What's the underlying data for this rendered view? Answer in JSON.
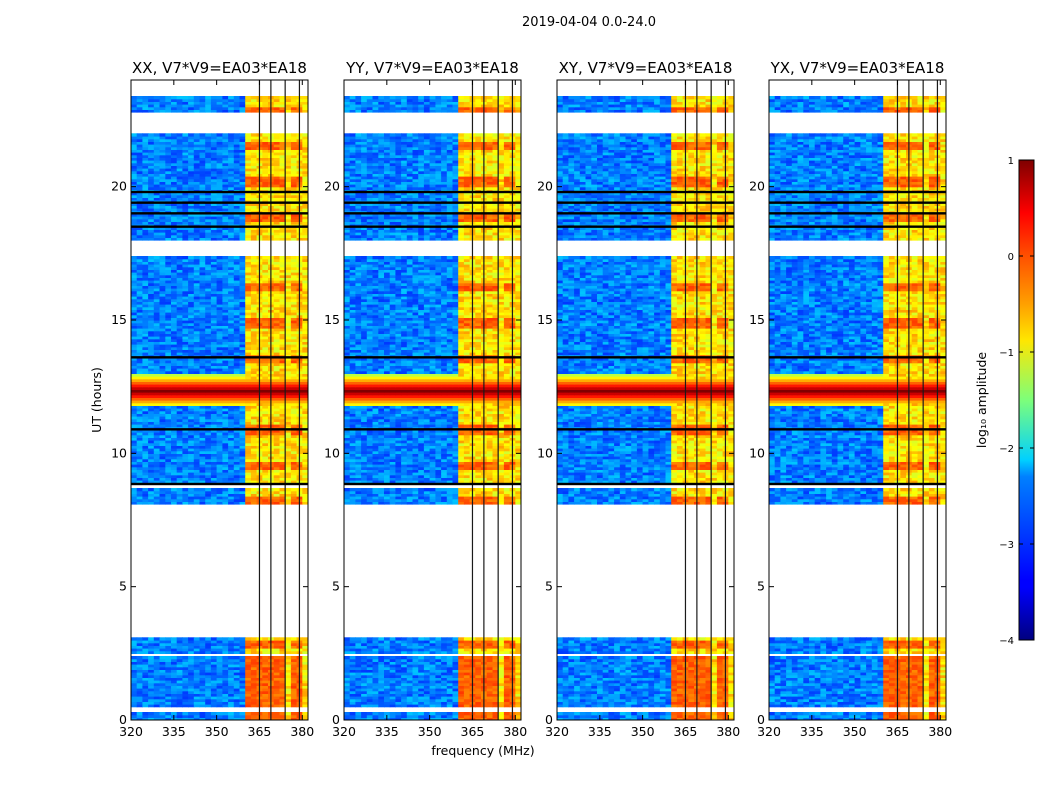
{
  "chart_data": {
    "type": "heatmap",
    "suptitle": "2019-04-04 0.0-24.0",
    "xlabel": "frequency (MHz)",
    "ylabel": "UT (hours)",
    "xlim": [
      320,
      382
    ],
    "ylim": [
      0,
      24
    ],
    "xticks": [
      320,
      335,
      350,
      365,
      380
    ],
    "yticks": [
      0,
      5,
      10,
      15,
      20
    ],
    "panels": [
      {
        "title": "XX, V7*V9=EA03*EA18",
        "band_start_mhz": 359,
        "strong_peak": 1.0
      },
      {
        "title": "YY, V7*V9=EA03*EA18",
        "band_start_mhz": 359,
        "strong_peak": 1.0
      },
      {
        "title": "XY, V7*V9=EA03*EA18",
        "band_start_mhz": 359,
        "strong_peak": 1.0
      },
      {
        "title": "YX, V7*V9=EA03*EA18",
        "band_start_mhz": 359,
        "strong_peak": 1.0
      }
    ],
    "gaps_hours": [
      [
        0.3,
        0.5
      ],
      [
        2.4,
        2.5
      ],
      [
        3.1,
        8.1
      ],
      [
        8.7,
        8.9
      ],
      [
        17.4,
        18.0
      ],
      [
        22.0,
        22.8
      ],
      [
        23.4,
        24.0
      ]
    ],
    "flag_lines_hours": [
      8.85,
      10.9,
      13.6,
      18.5,
      19.0,
      19.4,
      19.8
    ],
    "strong_rfi": {
      "center_hours": 12.3,
      "half_width_hours": 0.6,
      "log_amplitude": 1.0
    },
    "band_bright_channels_mhz": [
      [
        360,
        365
      ],
      [
        365,
        369
      ],
      [
        369.5,
        374
      ],
      [
        374.5,
        379
      ]
    ],
    "band_edge_mhz": 378.5,
    "colorbar": {
      "label": "log₁₀ amplitude",
      "min": -4,
      "max": 1,
      "ticks": [
        -4,
        -3,
        -2,
        -1,
        0,
        1
      ],
      "tick_labels": [
        "−4",
        "−3",
        "−2",
        "−1",
        "0",
        "1"
      ],
      "colormap": "jet"
    }
  }
}
